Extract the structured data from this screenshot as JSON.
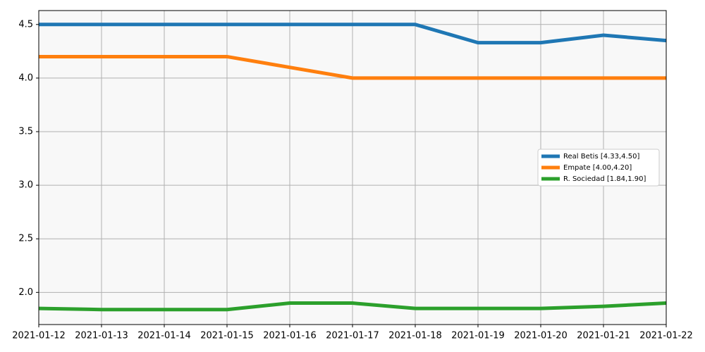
{
  "chart_data": {
    "type": "line",
    "x": [
      "2021-01-12",
      "2021-01-13",
      "2021-01-14",
      "2021-01-15",
      "2021-01-16",
      "2021-01-17",
      "2021-01-18",
      "2021-01-19",
      "2021-01-20",
      "2021-01-21",
      "2021-01-22"
    ],
    "series": [
      {
        "name": "Real Betis [4.33,4.50]",
        "color": "#1f77b4",
        "values": [
          4.5,
          4.5,
          4.5,
          4.5,
          4.5,
          4.5,
          4.5,
          4.33,
          4.33,
          4.4,
          4.35
        ]
      },
      {
        "name": "Empate [4.00,4.20]",
        "color": "#ff7f0e",
        "values": [
          4.2,
          4.2,
          4.2,
          4.2,
          4.1,
          4.0,
          4.0,
          4.0,
          4.0,
          4.0,
          4.0
        ]
      },
      {
        "name": "R. Sociedad [1.84,1.90]",
        "color": "#2ca02c",
        "values": [
          1.85,
          1.84,
          1.84,
          1.84,
          1.9,
          1.9,
          1.85,
          1.85,
          1.85,
          1.87,
          1.9
        ]
      }
    ],
    "xlim": [
      "2021-01-12",
      "2021-01-22"
    ],
    "xticks": [
      "2021-01-12",
      "2021-01-13",
      "2021-01-14",
      "2021-01-15",
      "2021-01-16",
      "2021-01-17",
      "2021-01-18",
      "2021-01-19",
      "2021-01-20",
      "2021-01-21",
      "2021-01-22"
    ],
    "ylim": [
      1.7,
      4.63
    ],
    "yticks": [
      {
        "value": 2,
        "label": "2.0"
      },
      2.5,
      {
        "value": 3,
        "label": "3.0"
      },
      3.5,
      {
        "value": 4,
        "label": "4.0"
      },
      4.5
    ],
    "grid": true,
    "legend": "center right"
  }
}
